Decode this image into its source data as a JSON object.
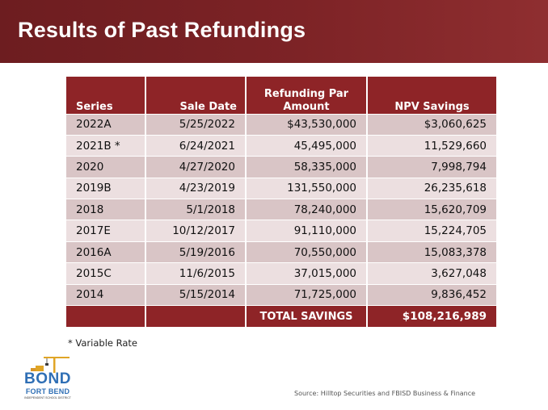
{
  "slide": {
    "title": "Results of Past Refundings",
    "footnote": "* Variable Rate",
    "source": "Source: Hilltop Securities and FBISD Business & Finance"
  },
  "table": {
    "headers": {
      "series": "Series",
      "sale_date": "Sale Date",
      "par_line1": "Refunding Par",
      "par_line2": "Amount",
      "npv": "NPV Savings"
    },
    "rows": [
      {
        "series": "2022A",
        "sale_date": "5/25/2022",
        "par": "$43,530,000",
        "npv": "$3,060,625"
      },
      {
        "series": "2021B *",
        "sale_date": "6/24/2021",
        "par": "45,495,000",
        "npv": "11,529,660"
      },
      {
        "series": "2020",
        "sale_date": "4/27/2020",
        "par": "58,335,000",
        "npv": "7,998,794"
      },
      {
        "series": "2019B",
        "sale_date": "4/23/2019",
        "par": "131,550,000",
        "npv": "26,235,618"
      },
      {
        "series": "2018",
        "sale_date": "5/1/2018",
        "par": "78,240,000",
        "npv": "15,620,709"
      },
      {
        "series": "2017E",
        "sale_date": "10/12/2017",
        "par": "91,110,000",
        "npv": "15,224,705"
      },
      {
        "series": "2016A",
        "sale_date": "5/19/2016",
        "par": "70,550,000",
        "npv": "15,083,378"
      },
      {
        "series": "2015C",
        "sale_date": "11/6/2015",
        "par": "37,015,000",
        "npv": "3,627,048"
      },
      {
        "series": "2014",
        "sale_date": "5/15/2014",
        "par": "71,725,000",
        "npv": "9,836,452"
      }
    ],
    "total": {
      "label": "TOTAL SAVINGS",
      "value": "$108,216,989"
    }
  },
  "logo": {
    "word": "BOND",
    "sub": "FORT BEND",
    "tiny": "INDEPENDENT SCHOOL DISTRICT"
  },
  "colors": {
    "title_bar": "#7d2326",
    "header_fill": "#8e2427",
    "row_dark": "#d9c5c6",
    "row_light": "#ecdfe0",
    "logo_blue": "#2f6fb5",
    "logo_gold": "#e0a526"
  }
}
